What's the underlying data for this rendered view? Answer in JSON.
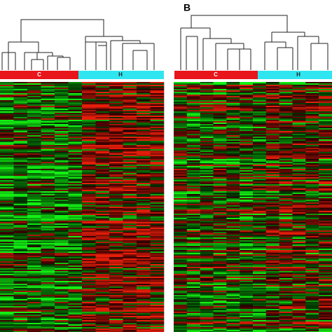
{
  "panels": [
    {
      "groups": [
        "C",
        "H"
      ]
    },
    {
      "label": "B",
      "groups": [
        "C",
        "H"
      ]
    }
  ]
}
